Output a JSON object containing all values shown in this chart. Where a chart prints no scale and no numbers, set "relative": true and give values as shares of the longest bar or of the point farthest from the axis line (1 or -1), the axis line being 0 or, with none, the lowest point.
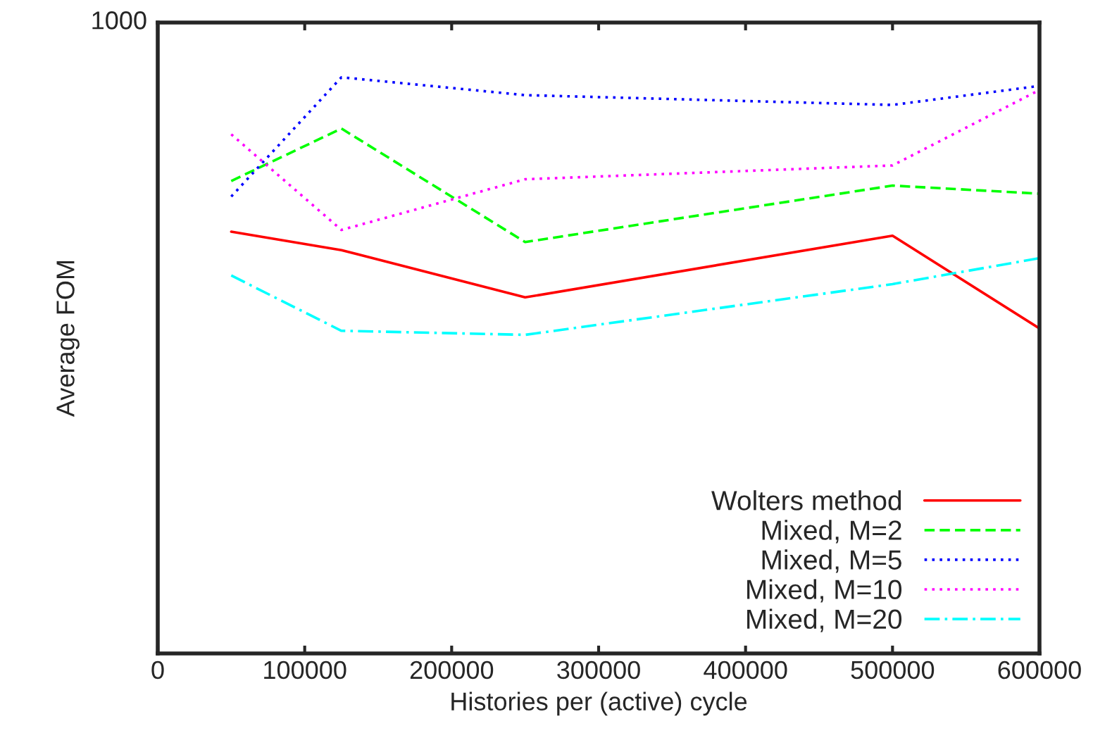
{
  "chart_data": {
    "type": "line",
    "xlabel": "Histories per (active) cycle",
    "ylabel": "Average FOM",
    "x": [
      50000,
      125000,
      250000,
      500000,
      600000
    ],
    "relative": true,
    "series": [
      {
        "name": "Wolters method",
        "color": "#ff0000",
        "line_style": "solid",
        "values": [
          0.732,
          0.7,
          0.618,
          0.725,
          0.564
        ]
      },
      {
        "name": "Mixed, M=2",
        "color": "#00ff00",
        "line_style": "dashed",
        "values": [
          0.82,
          0.911,
          0.714,
          0.812,
          0.798
        ]
      },
      {
        "name": "Mixed, M=5",
        "color": "#0000ff",
        "line_style": "dotted",
        "values": [
          0.793,
          1,
          0.969,
          0.952,
          0.985
        ]
      },
      {
        "name": "Mixed, M=10",
        "color": "#ff00ff",
        "line_style": "dotted",
        "values": [
          0.901,
          0.735,
          0.823,
          0.847,
          0.978
        ]
      },
      {
        "name": "Mixed, M=20",
        "color": "#00ffff",
        "line_style": "dashdot",
        "values": [
          0.656,
          0.56,
          0.553,
          0.641,
          0.686
        ]
      }
    ],
    "annotations": [
      "1000"
    ],
    "xlim": [
      0,
      600000
    ],
    "xticks": [
      0,
      100000,
      200000,
      300000,
      400000,
      500000,
      600000
    ],
    "grid": false,
    "legend": "bottom right",
    "marker": "none"
  }
}
